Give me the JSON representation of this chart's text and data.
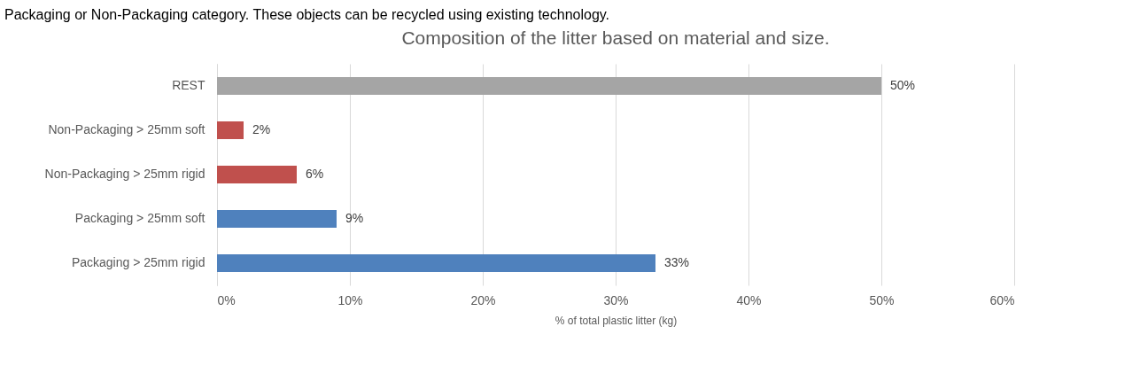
{
  "chart_data": {
    "type": "bar",
    "orientation": "horizontal",
    "title": "Composition of the litter based on material and size.",
    "xlabel": "% of total plastic litter (kg)",
    "categories": [
      "REST",
      "Non-Packaging > 25mm soft",
      "Non-Packaging > 25mm rigid",
      "Packaging > 25mm soft",
      "Packaging > 25mm rigid"
    ],
    "values": [
      50,
      2,
      6,
      9,
      33
    ],
    "colors": [
      "#a5a5a5",
      "#c0504d",
      "#c0504d",
      "#4f81bd",
      "#4f81bd"
    ],
    "xlim": [
      0,
      60
    ],
    "xticks": [
      {
        "value": 0,
        "label": "0%"
      },
      {
        "value": 10,
        "label": "10%"
      },
      {
        "value": 20,
        "label": "20%"
      },
      {
        "value": 30,
        "label": "30%"
      },
      {
        "value": 40,
        "label": "40%"
      },
      {
        "value": 50,
        "label": "50%"
      },
      {
        "value": 60,
        "label": "60%"
      }
    ],
    "value_labels": [
      "50%",
      "2%",
      "6%",
      "9%",
      "33%"
    ],
    "grid": "x",
    "annotations": [
      "Packaging or Non-Packaging category. These objects can be recycled using existing technology."
    ]
  }
}
